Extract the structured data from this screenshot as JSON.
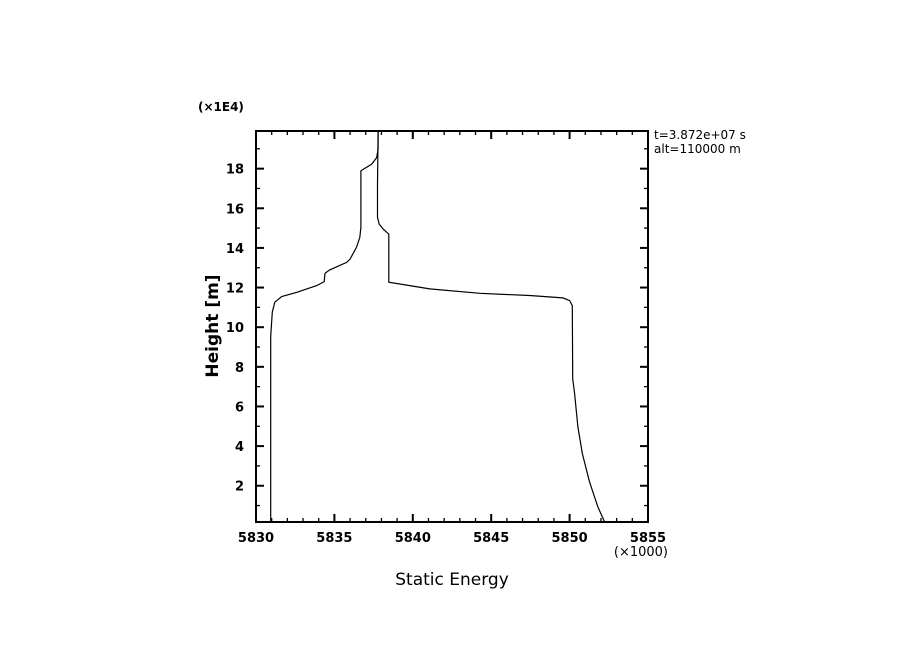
{
  "chart_data": {
    "type": "line",
    "title": "",
    "xlabel": "Static Energy",
    "ylabel": "Height [m]",
    "x_multiplier_label": "(×1000)",
    "y_multiplier_label": "(×1E4)",
    "xlim": [
      5830,
      5855
    ],
    "ylim": [
      0.17,
      19.9
    ],
    "xticks": [
      5830,
      5835,
      5840,
      5845,
      5850,
      5855
    ],
    "xtick_labels": [
      "5830",
      "5835",
      "5840",
      "5845",
      "5850",
      "5855"
    ],
    "yticks": [
      2,
      4,
      6,
      8,
      10,
      12,
      14,
      16,
      18
    ],
    "ytick_labels": [
      "2",
      "4",
      "6",
      "8",
      "10",
      "12",
      "14",
      "16",
      "18"
    ],
    "grid": false,
    "annotations": [
      "t=3.872e+07 s",
      "alt=110000 m"
    ],
    "line_color": "#000000",
    "series": [
      {
        "x": [
          5830.94,
          5830.94,
          5831.04,
          5831.2,
          5831.64,
          5832.6,
          5833.87,
          5834.35,
          5834.4,
          5834.7,
          5835.78,
          5836.0,
          5836.41,
          5836.62,
          5836.69,
          5836.69,
          5836.84,
          5837.37,
          5837.69,
          5837.79,
          5837.79
        ],
        "y": [
          0.17,
          9.53,
          10.76,
          11.26,
          11.55,
          11.76,
          12.1,
          12.3,
          12.72,
          12.89,
          13.27,
          13.44,
          14.03,
          14.53,
          15.03,
          17.89,
          17.97,
          18.22,
          18.55,
          18.98,
          19.9
        ]
      },
      {
        "x": [
          5837.79,
          5837.75,
          5837.75,
          5837.86,
          5838.11,
          5838.47,
          5838.47,
          5839.81,
          5841.08,
          5844.27,
          5847.45,
          5849.57,
          5850.0,
          5850.17,
          5850.2,
          5850.32,
          5850.53,
          5850.81,
          5851.27,
          5851.8,
          5852.23
        ],
        "y": [
          19.9,
          17.22,
          15.54,
          15.2,
          14.95,
          14.7,
          12.27,
          12.1,
          11.93,
          11.71,
          11.6,
          11.48,
          11.34,
          11.09,
          7.4,
          6.65,
          4.97,
          3.63,
          2.2,
          0.94,
          0.17
        ]
      }
    ]
  }
}
